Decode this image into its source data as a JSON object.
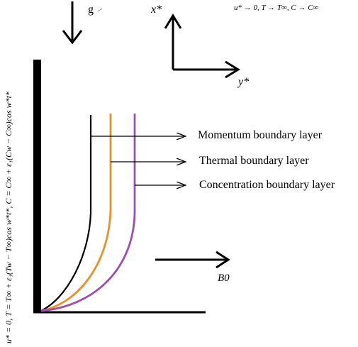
{
  "annotations": {
    "gravity": "g",
    "top_right": "u* → 0, T → T∞, C → C∞",
    "x_axis": "x*",
    "y_axis": "y*",
    "field": "B0",
    "wall_condition": "u* = 0, T = T∞ + ε₁(Tw − T∞)cos w*t*, C = C∞ + ε₁(Cw − C∞)cos w*t*"
  },
  "boundary_layers": [
    {
      "label": "Momentum boundary layer",
      "color": "#000000"
    },
    {
      "label": "Thermal boundary layer",
      "color": "#e8902a"
    },
    {
      "label": "Concentration boundary layer",
      "color": "#9b4fb3"
    }
  ]
}
